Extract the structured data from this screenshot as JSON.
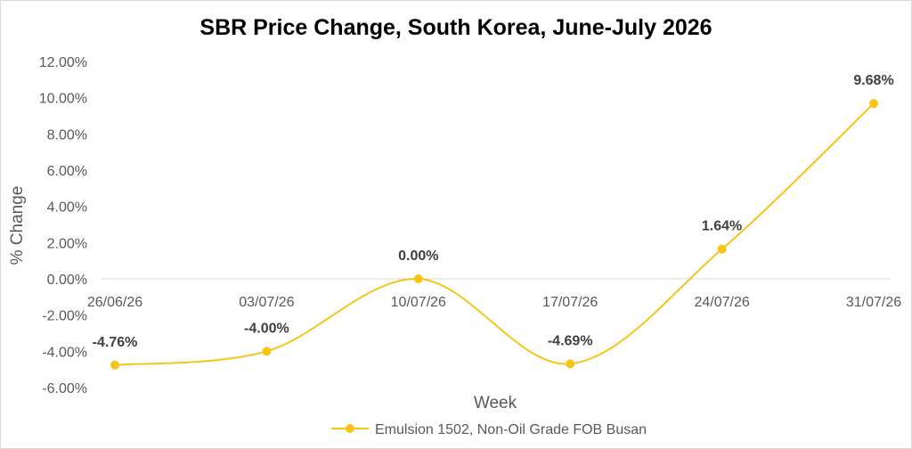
{
  "chart_data": {
    "type": "line",
    "title": "SBR Price Change, South Korea, June-July 2026",
    "xlabel": "Week",
    "ylabel": "% Change",
    "categories": [
      "26/06/26",
      "03/07/26",
      "10/07/26",
      "17/07/26",
      "24/07/26",
      "31/07/26"
    ],
    "series": [
      {
        "name": "Emulsion 1502, Non-Oil Grade FOB Busan",
        "values": [
          -4.76,
          -4.0,
          0.0,
          -4.69,
          1.64,
          9.68
        ],
        "data_labels": [
          "-4.76%",
          "-4.00%",
          "0.00%",
          "-4.69%",
          "1.64%",
          "9.68%"
        ],
        "color": "#F5C518"
      }
    ],
    "ylim": [
      -6,
      12
    ],
    "ytick_step": 2,
    "ytick_labels": [
      "-6.00%",
      "-4.00%",
      "-2.00%",
      "0.00%",
      "2.00%",
      "4.00%",
      "6.00%",
      "8.00%",
      "10.00%",
      "12.00%"
    ],
    "smooth": true,
    "grid": false,
    "legend_position": "bottom",
    "axis_color": "#d9d9d9"
  }
}
